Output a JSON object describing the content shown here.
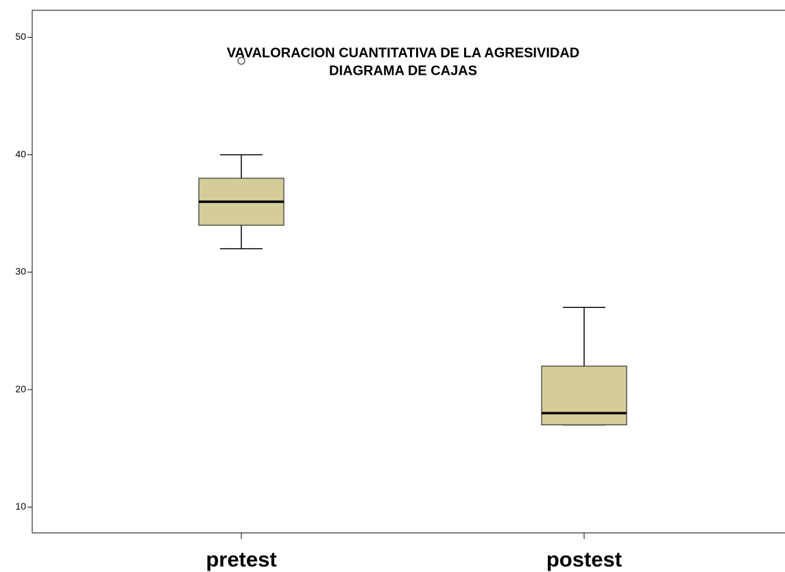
{
  "chart_data": {
    "type": "box",
    "title": [
      "VAVALORACION CUANTITATIVA DE LA  AGRESIVIDAD",
      "DIAGRAMA DE CAJAS"
    ],
    "categories": [
      "pretest",
      "postest"
    ],
    "boxes": [
      {
        "min": 32,
        "q1": 34,
        "median": 36,
        "q3": 38,
        "max": 40,
        "outliers": [
          48
        ]
      },
      {
        "min": 17,
        "q1": 17,
        "median": 18,
        "q3": 22,
        "max": 27,
        "outliers": []
      }
    ],
    "color": "#d4cd99",
    "ylim": [
      7.8,
      52.3
    ],
    "yticks": [
      10,
      20,
      30,
      40,
      50
    ]
  }
}
